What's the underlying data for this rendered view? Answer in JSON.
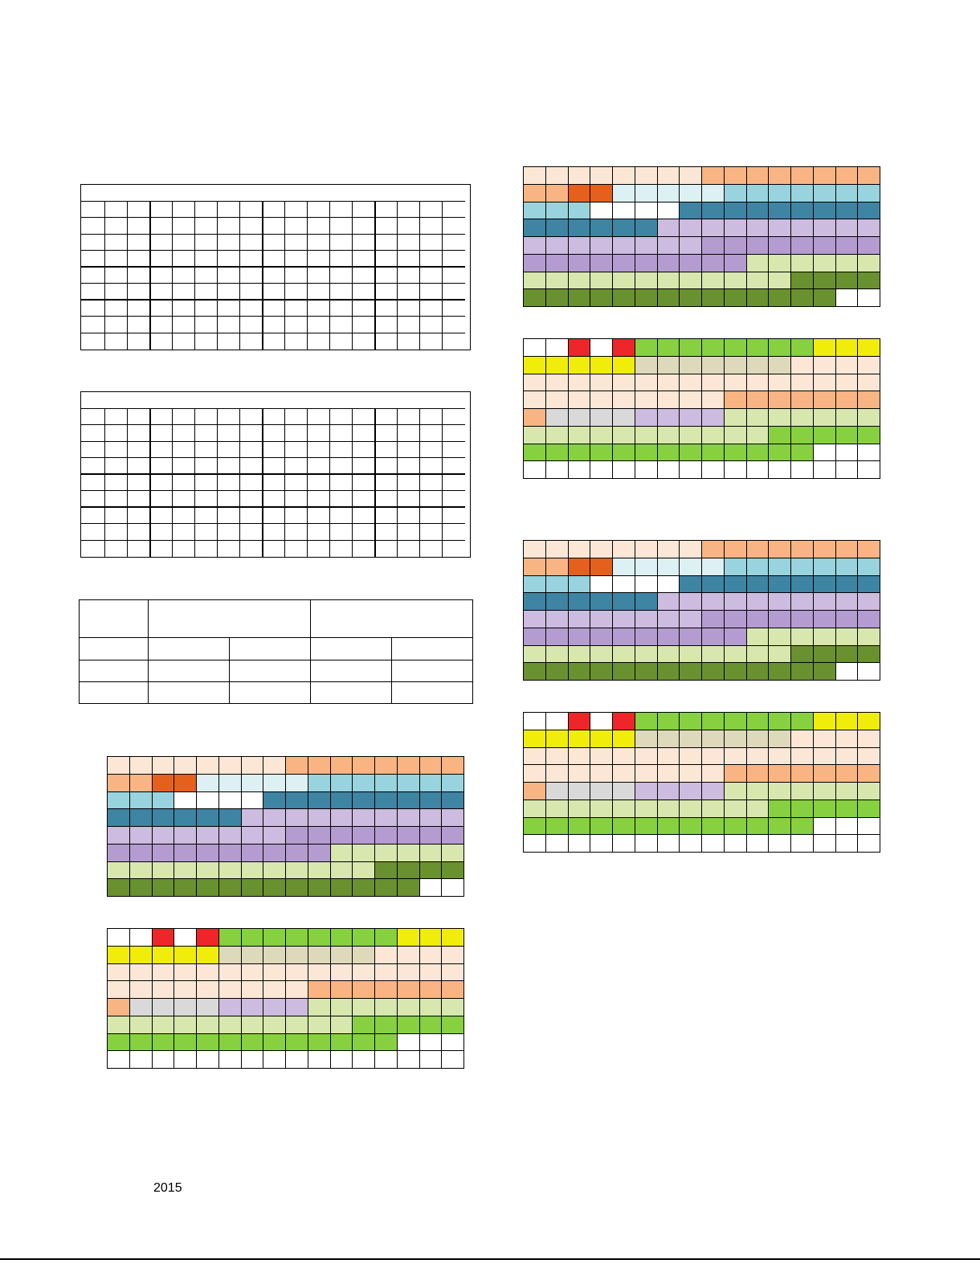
{
  "footer": {
    "year": "2015"
  },
  "colors": {
    "P": "#FCE7D6",
    "O": "#F8B583",
    "R": "#E5601D",
    "L": "#DDF0F4",
    "T": "#98D3DE",
    "B": "#3E84A3",
    "V": "#CDBBE0",
    "M": "#B59CD0",
    "G": "#D7E7AE",
    "D": "#6A912F",
    "W": "#FFFFFF",
    "E": "#EE2529",
    "N": "#87D03F",
    "Y": "#F0ED0A",
    "K": "#DFD9BC",
    "S": "#D9D9D9"
  },
  "pattern_a": [
    "PPPPPPPPOOOOOOOO",
    "OORRLLLLLTTTTTTT",
    "TTTWWWWBBBBBBBBB",
    "BBBBBBVVVVVVVVVV",
    "VVVVVVVVMMMMMMMM",
    "MMMMMMMMMMGGGGGG",
    "GGGGGGGGGGGGDDDD",
    "DDDDDDDDDDDDDDWW"
  ],
  "pattern_b": [
    "WWEWENNNNNNNNYYY",
    "YYYYYKKKKKKKPPPP",
    "PPPPPPPPPPPPPPPP",
    "PPPPPPPPPOOOOOOO",
    "OSSSSVVVVGGGGGGG",
    "GGGGGGGGGGGNNNNN",
    "NNNNNNNNNNNNNWWW",
    "WWWWWWWWWWWWWWWW"
  ]
}
